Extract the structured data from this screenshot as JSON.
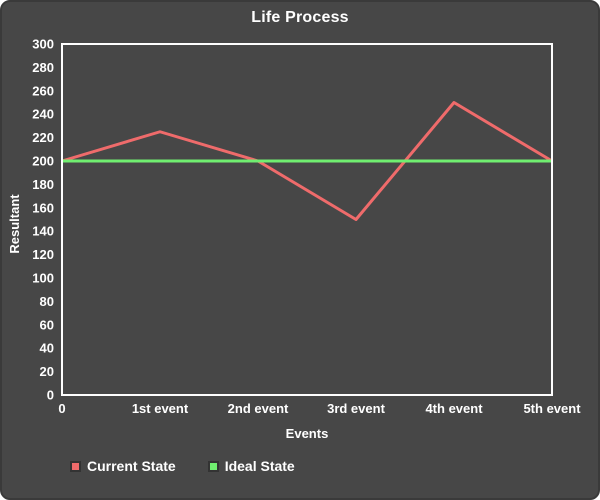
{
  "chart_data": {
    "type": "line",
    "title": "Life Process",
    "xlabel": "Events",
    "ylabel": "Resultant",
    "categories": [
      "0",
      "1st event",
      "2nd event",
      "3rd event",
      "4th event",
      "5th event"
    ],
    "series": [
      {
        "name": "Current State",
        "color": "#ef6b6b",
        "values": [
          200,
          225,
          200,
          150,
          250,
          200
        ]
      },
      {
        "name": "Ideal State",
        "color": "#70ee70",
        "values": [
          200,
          200,
          200,
          200,
          200,
          200
        ]
      }
    ],
    "ylim": [
      0,
      300
    ],
    "ytick_step": 20,
    "grid": false,
    "legend_position": "bottom-left"
  },
  "colors": {
    "card_background": "#474747",
    "card_border": "#3a3a3a",
    "plot_border": "#ffffff",
    "text": "#ffffff",
    "current_state_line": "#ef6b6b",
    "ideal_state_line": "#70ee70"
  }
}
